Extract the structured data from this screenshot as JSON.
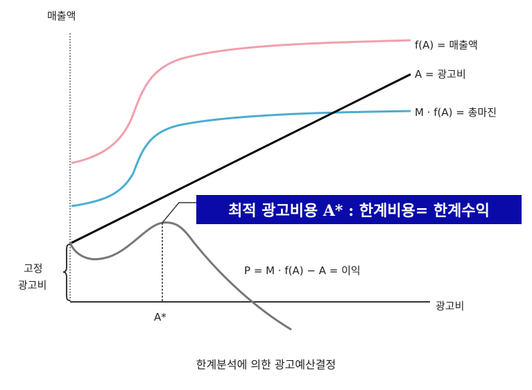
{
  "axes": {
    "y_label": "매출액",
    "x_label": "광고비",
    "x_marker": "A*",
    "fixed_cost_line1": "고정",
    "fixed_cost_line2": "광고비"
  },
  "curves": {
    "sales": {
      "label": "f(A) = 매출액",
      "color": "#f0a0ac"
    },
    "ad_cost": {
      "label": "A = 광고비",
      "color": "#000000"
    },
    "margin": {
      "label": "M · f(A) = 총마진",
      "color": "#4aaed0"
    },
    "profit": {
      "label": "P = M · f(A) − A = 이익",
      "color": "#777777"
    }
  },
  "callout": {
    "text": "최적 광고비용 A* : 한계비용= 한계수익",
    "bg_color": "#0a0aa8"
  },
  "caption": "한계분석에 의한 광고예산결정"
}
